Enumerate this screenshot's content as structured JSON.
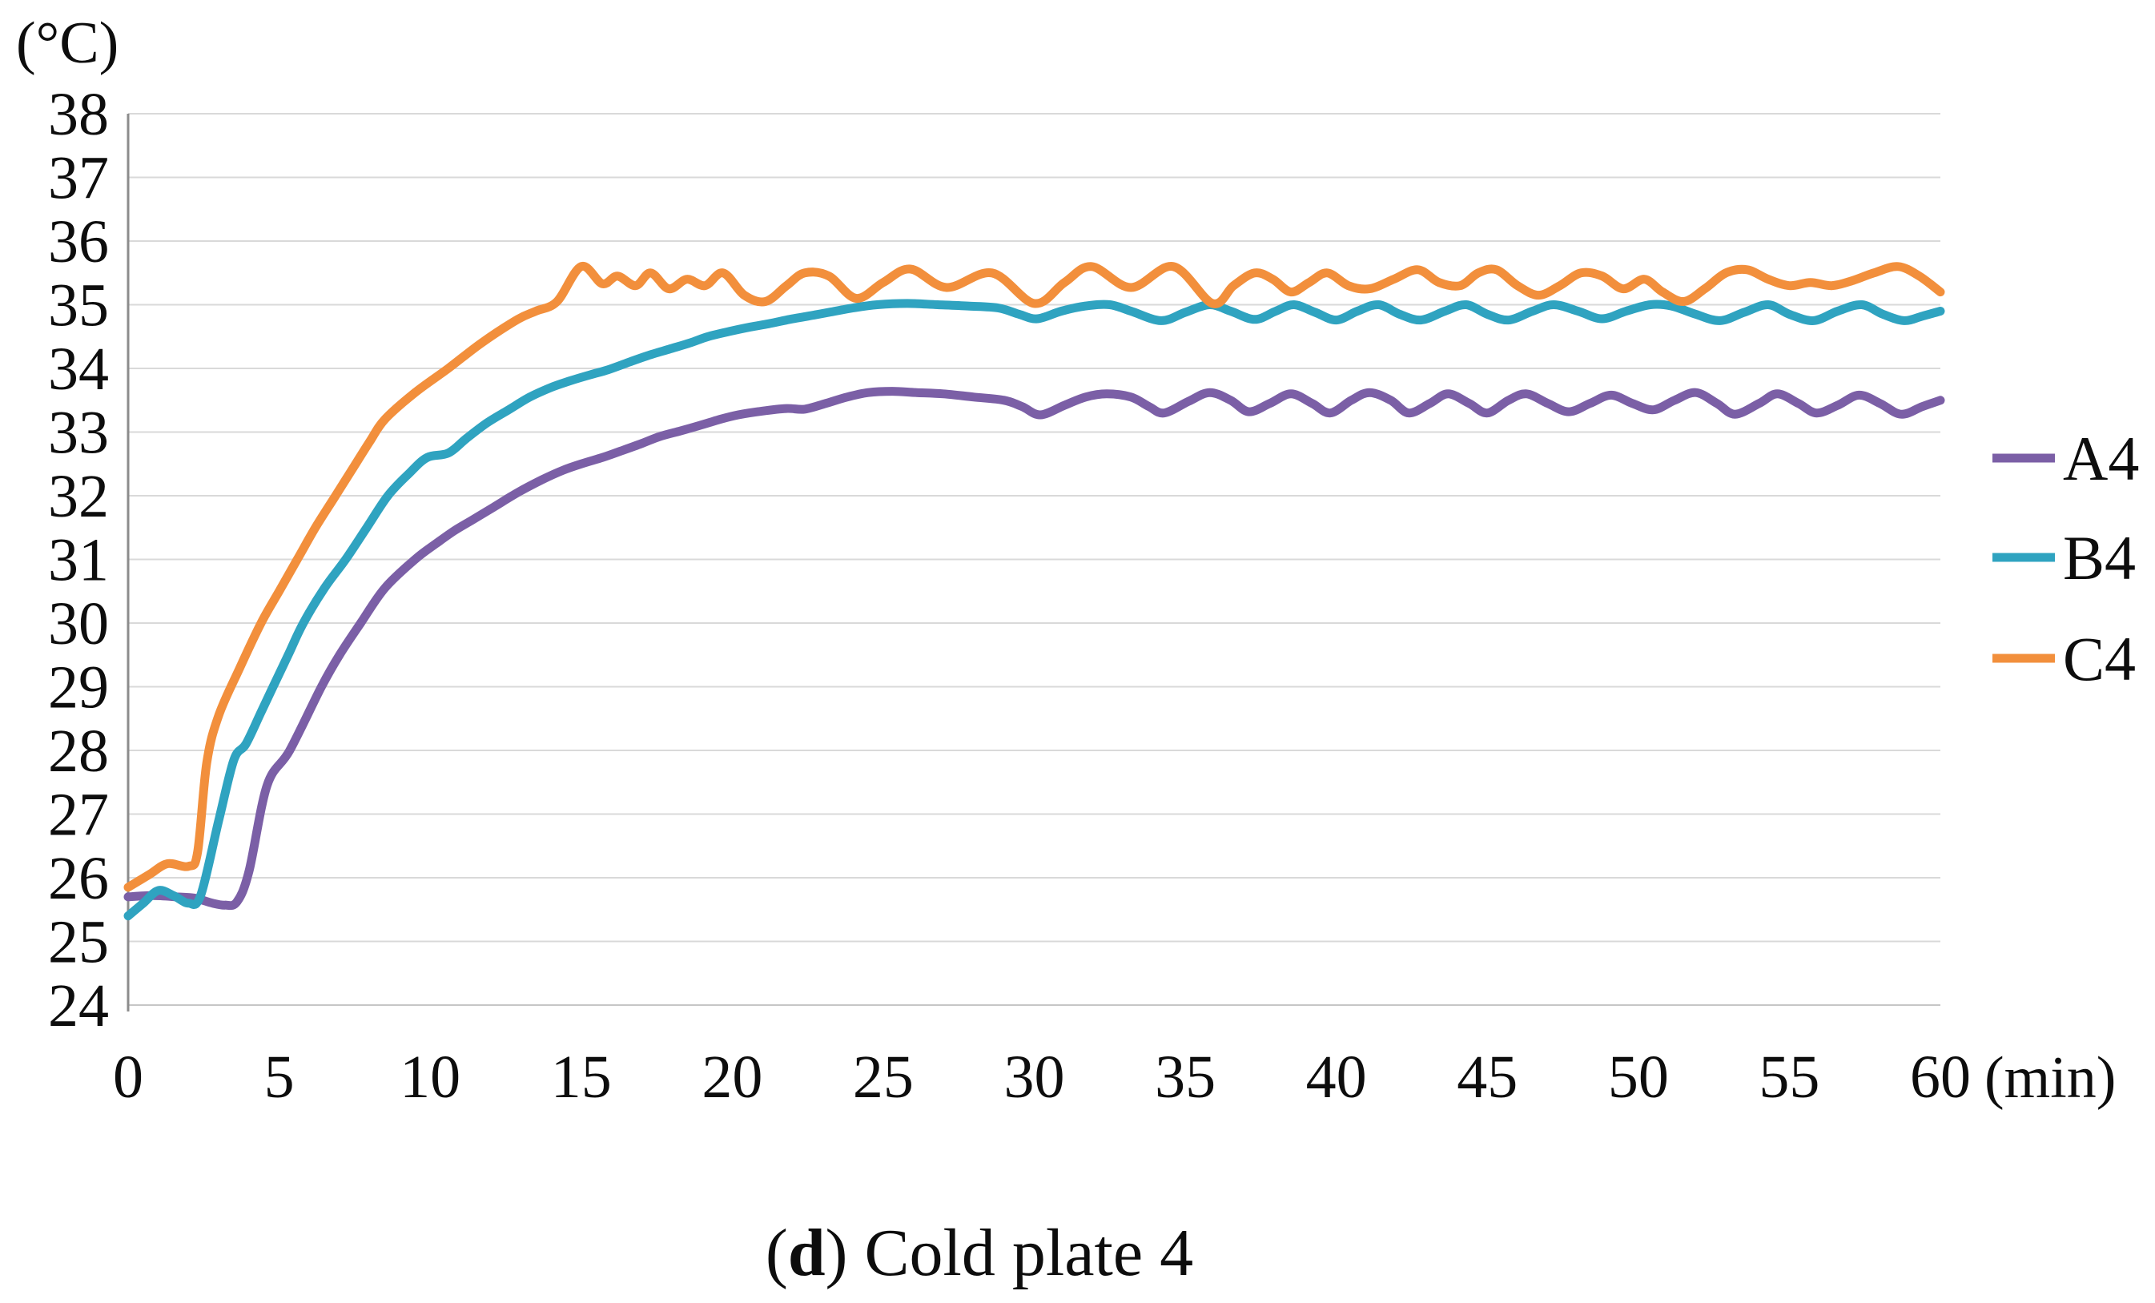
{
  "figure": {
    "caption_prefix": "(",
    "caption_bold": "d",
    "caption_suffix": ") Cold plate 4"
  },
  "colors": {
    "gridline": "#d9d9d9",
    "y_axis_line": "#8c8c8c",
    "x_axis_line": "#c6c6c6",
    "text": "#0d0d0d",
    "series_a4": "#7b5fa6",
    "series_b4": "#2fa3c0",
    "series_c4": "#f28f3c"
  },
  "chart_data": {
    "type": "line",
    "title": "",
    "xlabel": "(min)",
    "ylabel": "(°C)",
    "xlim": [
      0,
      60
    ],
    "ylim": [
      24,
      38
    ],
    "x_ticks": [
      0,
      5,
      10,
      15,
      20,
      25,
      30,
      35,
      40,
      45,
      50,
      55,
      60
    ],
    "y_ticks": [
      24,
      25,
      26,
      27,
      28,
      29,
      30,
      31,
      32,
      33,
      34,
      35,
      36,
      37,
      38
    ],
    "grid": "horizontal",
    "legend_position": "right",
    "smooth_lines": true,
    "series": [
      {
        "name": "A4",
        "color": "#7b5fa6",
        "points": [
          [
            0,
            25.7
          ],
          [
            0.8,
            25.72
          ],
          [
            1.6,
            25.7
          ],
          [
            2.2,
            25.68
          ],
          [
            2.8,
            25.6
          ],
          [
            3.2,
            25.57
          ],
          [
            3.6,
            25.62
          ],
          [
            4.0,
            26.1
          ],
          [
            4.6,
            27.45
          ],
          [
            5.35,
            28.0
          ],
          [
            6.4,
            29.0
          ],
          [
            7.0,
            29.5
          ],
          [
            7.7,
            30.0
          ],
          [
            8.5,
            30.55
          ],
          [
            9.5,
            31.0
          ],
          [
            10.2,
            31.25
          ],
          [
            10.8,
            31.45
          ],
          [
            11.4,
            31.62
          ],
          [
            12.1,
            31.82
          ],
          [
            12.9,
            32.05
          ],
          [
            13.7,
            32.25
          ],
          [
            14.4,
            32.4
          ],
          [
            15.0,
            32.5
          ],
          [
            15.7,
            32.6
          ],
          [
            16.3,
            32.7
          ],
          [
            17.0,
            32.82
          ],
          [
            17.6,
            32.93
          ],
          [
            18.3,
            33.02
          ],
          [
            18.9,
            33.1
          ],
          [
            19.6,
            33.2
          ],
          [
            20.2,
            33.27
          ],
          [
            21.0,
            33.33
          ],
          [
            21.8,
            33.37
          ],
          [
            22.4,
            33.36
          ],
          [
            23.1,
            33.45
          ],
          [
            23.8,
            33.55
          ],
          [
            24.5,
            33.62
          ],
          [
            25.3,
            33.64
          ],
          [
            26.1,
            33.62
          ],
          [
            27.0,
            33.6
          ],
          [
            28.0,
            33.55
          ],
          [
            29.0,
            33.5
          ],
          [
            29.6,
            33.4
          ],
          [
            30.2,
            33.27
          ],
          [
            31.0,
            33.42
          ],
          [
            31.7,
            33.55
          ],
          [
            32.4,
            33.6
          ],
          [
            33.2,
            33.55
          ],
          [
            33.8,
            33.4
          ],
          [
            34.3,
            33.3
          ],
          [
            35.1,
            33.48
          ],
          [
            35.8,
            33.62
          ],
          [
            36.5,
            33.5
          ],
          [
            37.1,
            33.32
          ],
          [
            37.8,
            33.45
          ],
          [
            38.5,
            33.6
          ],
          [
            39.2,
            33.45
          ],
          [
            39.8,
            33.3
          ],
          [
            40.5,
            33.5
          ],
          [
            41.1,
            33.62
          ],
          [
            41.8,
            33.5
          ],
          [
            42.4,
            33.3
          ],
          [
            43.1,
            33.45
          ],
          [
            43.7,
            33.6
          ],
          [
            44.4,
            33.45
          ],
          [
            45.0,
            33.3
          ],
          [
            45.7,
            33.5
          ],
          [
            46.3,
            33.6
          ],
          [
            47.0,
            33.45
          ],
          [
            47.7,
            33.32
          ],
          [
            48.4,
            33.45
          ],
          [
            49.1,
            33.58
          ],
          [
            49.8,
            33.45
          ],
          [
            50.5,
            33.35
          ],
          [
            51.2,
            33.5
          ],
          [
            51.9,
            33.62
          ],
          [
            52.6,
            33.45
          ],
          [
            53.2,
            33.28
          ],
          [
            54.0,
            33.45
          ],
          [
            54.6,
            33.6
          ],
          [
            55.3,
            33.45
          ],
          [
            55.9,
            33.3
          ],
          [
            56.6,
            33.42
          ],
          [
            57.3,
            33.58
          ],
          [
            58.0,
            33.45
          ],
          [
            58.7,
            33.28
          ],
          [
            59.4,
            33.4
          ],
          [
            60,
            33.5
          ]
        ]
      },
      {
        "name": "B4",
        "color": "#2fa3c0",
        "points": [
          [
            0,
            25.4
          ],
          [
            0.5,
            25.6
          ],
          [
            1.0,
            25.8
          ],
          [
            1.5,
            25.72
          ],
          [
            2.0,
            25.6
          ],
          [
            2.4,
            25.72
          ],
          [
            3.0,
            26.9
          ],
          [
            3.5,
            27.85
          ],
          [
            3.9,
            28.1
          ],
          [
            4.4,
            28.6
          ],
          [
            4.8,
            29.0
          ],
          [
            5.3,
            29.5
          ],
          [
            5.8,
            30.0
          ],
          [
            6.5,
            30.55
          ],
          [
            7.2,
            31.0
          ],
          [
            7.9,
            31.5
          ],
          [
            8.6,
            32.0
          ],
          [
            9.3,
            32.35
          ],
          [
            9.9,
            32.6
          ],
          [
            10.6,
            32.67
          ],
          [
            11.2,
            32.9
          ],
          [
            11.9,
            33.15
          ],
          [
            12.6,
            33.35
          ],
          [
            13.3,
            33.55
          ],
          [
            14.0,
            33.7
          ],
          [
            14.6,
            33.8
          ],
          [
            15.3,
            33.9
          ],
          [
            15.9,
            33.98
          ],
          [
            16.6,
            34.1
          ],
          [
            17.2,
            34.2
          ],
          [
            17.9,
            34.3
          ],
          [
            18.6,
            34.4
          ],
          [
            19.2,
            34.5
          ],
          [
            19.9,
            34.58
          ],
          [
            20.6,
            34.65
          ],
          [
            21.2,
            34.7
          ],
          [
            21.9,
            34.77
          ],
          [
            22.5,
            34.82
          ],
          [
            23.2,
            34.88
          ],
          [
            24.0,
            34.95
          ],
          [
            24.8,
            35.0
          ],
          [
            25.8,
            35.02
          ],
          [
            26.8,
            35.0
          ],
          [
            27.8,
            34.98
          ],
          [
            28.8,
            34.95
          ],
          [
            29.5,
            34.85
          ],
          [
            30.1,
            34.78
          ],
          [
            30.9,
            34.9
          ],
          [
            31.7,
            34.98
          ],
          [
            32.5,
            35.0
          ],
          [
            33.2,
            34.9
          ],
          [
            34.2,
            34.75
          ],
          [
            35.0,
            34.88
          ],
          [
            35.8,
            35.0
          ],
          [
            36.5,
            34.9
          ],
          [
            37.3,
            34.77
          ],
          [
            38.0,
            34.9
          ],
          [
            38.6,
            35.0
          ],
          [
            39.3,
            34.88
          ],
          [
            40.0,
            34.76
          ],
          [
            40.7,
            34.9
          ],
          [
            41.4,
            35.0
          ],
          [
            42.1,
            34.85
          ],
          [
            42.8,
            34.76
          ],
          [
            43.6,
            34.9
          ],
          [
            44.3,
            35.0
          ],
          [
            45.0,
            34.85
          ],
          [
            45.7,
            34.76
          ],
          [
            46.5,
            34.9
          ],
          [
            47.2,
            35.0
          ],
          [
            48.0,
            34.9
          ],
          [
            48.8,
            34.78
          ],
          [
            49.6,
            34.9
          ],
          [
            50.4,
            35.0
          ],
          [
            51.1,
            34.98
          ],
          [
            51.9,
            34.85
          ],
          [
            52.7,
            34.75
          ],
          [
            53.5,
            34.88
          ],
          [
            54.3,
            35.0
          ],
          [
            55.0,
            34.85
          ],
          [
            55.8,
            34.75
          ],
          [
            56.6,
            34.9
          ],
          [
            57.4,
            35.0
          ],
          [
            58.1,
            34.85
          ],
          [
            58.8,
            34.75
          ],
          [
            59.4,
            34.82
          ],
          [
            60,
            34.9
          ]
        ]
      },
      {
        "name": "C4",
        "color": "#f28f3c",
        "points": [
          [
            0,
            25.85
          ],
          [
            0.7,
            26.05
          ],
          [
            1.3,
            26.22
          ],
          [
            2.0,
            26.18
          ],
          [
            2.3,
            26.4
          ],
          [
            2.6,
            27.8
          ],
          [
            3.0,
            28.55
          ],
          [
            3.7,
            29.3
          ],
          [
            4.4,
            30.0
          ],
          [
            5.0,
            30.5
          ],
          [
            5.6,
            31.0
          ],
          [
            6.2,
            31.5
          ],
          [
            6.8,
            31.95
          ],
          [
            7.4,
            32.4
          ],
          [
            8.0,
            32.85
          ],
          [
            8.5,
            33.2
          ],
          [
            9.5,
            33.62
          ],
          [
            10.6,
            34.0
          ],
          [
            11.7,
            34.4
          ],
          [
            12.9,
            34.77
          ],
          [
            13.5,
            34.9
          ],
          [
            14.2,
            35.05
          ],
          [
            15.0,
            35.6
          ],
          [
            15.7,
            35.33
          ],
          [
            16.2,
            35.45
          ],
          [
            16.8,
            35.3
          ],
          [
            17.3,
            35.5
          ],
          [
            17.9,
            35.25
          ],
          [
            18.5,
            35.4
          ],
          [
            19.1,
            35.3
          ],
          [
            19.7,
            35.5
          ],
          [
            20.4,
            35.15
          ],
          [
            21.1,
            35.05
          ],
          [
            21.8,
            35.3
          ],
          [
            22.4,
            35.5
          ],
          [
            23.2,
            35.45
          ],
          [
            24.1,
            35.1
          ],
          [
            25.0,
            35.35
          ],
          [
            25.9,
            35.56
          ],
          [
            27.1,
            35.27
          ],
          [
            28.6,
            35.5
          ],
          [
            30.0,
            35.02
          ],
          [
            31.0,
            35.35
          ],
          [
            31.9,
            35.6
          ],
          [
            33.2,
            35.27
          ],
          [
            34.6,
            35.6
          ],
          [
            35.9,
            35.02
          ],
          [
            36.6,
            35.3
          ],
          [
            37.3,
            35.5
          ],
          [
            37.9,
            35.4
          ],
          [
            38.5,
            35.2
          ],
          [
            39.1,
            35.35
          ],
          [
            39.7,
            35.5
          ],
          [
            40.4,
            35.3
          ],
          [
            41.1,
            35.25
          ],
          [
            41.9,
            35.4
          ],
          [
            42.7,
            35.55
          ],
          [
            43.4,
            35.35
          ],
          [
            44.1,
            35.3
          ],
          [
            44.7,
            35.5
          ],
          [
            45.3,
            35.55
          ],
          [
            46.0,
            35.3
          ],
          [
            46.7,
            35.15
          ],
          [
            47.4,
            35.3
          ],
          [
            48.1,
            35.5
          ],
          [
            48.8,
            35.45
          ],
          [
            49.5,
            35.25
          ],
          [
            50.2,
            35.4
          ],
          [
            50.8,
            35.2
          ],
          [
            51.5,
            35.05
          ],
          [
            52.2,
            35.25
          ],
          [
            52.9,
            35.5
          ],
          [
            53.6,
            35.55
          ],
          [
            54.3,
            35.4
          ],
          [
            55.0,
            35.3
          ],
          [
            55.7,
            35.35
          ],
          [
            56.4,
            35.3
          ],
          [
            57.1,
            35.38
          ],
          [
            57.8,
            35.5
          ],
          [
            58.6,
            35.6
          ],
          [
            59.3,
            35.45
          ],
          [
            60,
            35.2
          ]
        ]
      }
    ]
  }
}
